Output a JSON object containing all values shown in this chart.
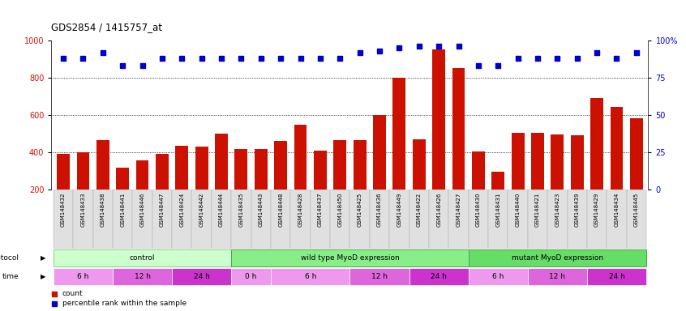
{
  "title": "GDS2854 / 1415757_at",
  "samples": [
    "GSM148432",
    "GSM148433",
    "GSM148438",
    "GSM148441",
    "GSM148446",
    "GSM148447",
    "GSM148424",
    "GSM148442",
    "GSM148444",
    "GSM148435",
    "GSM148443",
    "GSM148448",
    "GSM148428",
    "GSM148437",
    "GSM148450",
    "GSM148425",
    "GSM148436",
    "GSM148449",
    "GSM148422",
    "GSM148426",
    "GSM148427",
    "GSM148430",
    "GSM148431",
    "GSM148440",
    "GSM148421",
    "GSM148423",
    "GSM148439",
    "GSM148429",
    "GSM148434",
    "GSM148445"
  ],
  "counts": [
    390,
    400,
    465,
    320,
    355,
    390,
    435,
    430,
    500,
    420,
    420,
    460,
    550,
    410,
    465,
    465,
    600,
    800,
    470,
    950,
    850,
    405,
    295,
    505,
    505,
    495,
    490,
    690,
    645,
    585
  ],
  "percentiles": [
    88,
    88,
    92,
    83,
    83,
    88,
    88,
    88,
    88,
    88,
    88,
    88,
    88,
    88,
    88,
    92,
    93,
    95,
    96,
    96,
    96,
    83,
    83,
    88,
    88,
    88,
    88,
    92,
    88,
    92
  ],
  "protocols": [
    {
      "label": "control",
      "start": 0,
      "end": 9,
      "color": "#ccffcc",
      "border": "#88cc88"
    },
    {
      "label": "wild type MyoD expression",
      "start": 9,
      "end": 21,
      "color": "#88ee88",
      "border": "#44aa44"
    },
    {
      "label": "mutant MyoD expression",
      "start": 21,
      "end": 30,
      "color": "#66dd66",
      "border": "#44aa44"
    }
  ],
  "times": [
    {
      "label": "6 h",
      "start": 0,
      "end": 3,
      "color": "#ee99ee"
    },
    {
      "label": "12 h",
      "start": 3,
      "end": 6,
      "color": "#dd66dd"
    },
    {
      "label": "24 h",
      "start": 6,
      "end": 9,
      "color": "#cc33cc"
    },
    {
      "label": "0 h",
      "start": 9,
      "end": 11,
      "color": "#ee99ee"
    },
    {
      "label": "6 h",
      "start": 11,
      "end": 15,
      "color": "#ee99ee"
    },
    {
      "label": "12 h",
      "start": 15,
      "end": 18,
      "color": "#dd66dd"
    },
    {
      "label": "24 h",
      "start": 18,
      "end": 21,
      "color": "#cc33cc"
    },
    {
      "label": "6 h",
      "start": 21,
      "end": 24,
      "color": "#ee99ee"
    },
    {
      "label": "12 h",
      "start": 24,
      "end": 27,
      "color": "#dd66dd"
    },
    {
      "label": "24 h",
      "start": 27,
      "end": 30,
      "color": "#cc33cc"
    }
  ],
  "bar_color": "#cc1100",
  "dot_color": "#0000cc",
  "ylim_left": [
    200,
    1000
  ],
  "ylim_right": [
    0,
    100
  ],
  "yticks_left": [
    200,
    400,
    600,
    800,
    1000
  ],
  "yticks_right": [
    0,
    25,
    50,
    75,
    100
  ],
  "ytick_right_labels": [
    "0",
    "25",
    "50",
    "75",
    "100%"
  ],
  "grid_lines": [
    400,
    600,
    800
  ],
  "bar_bottom": 200
}
